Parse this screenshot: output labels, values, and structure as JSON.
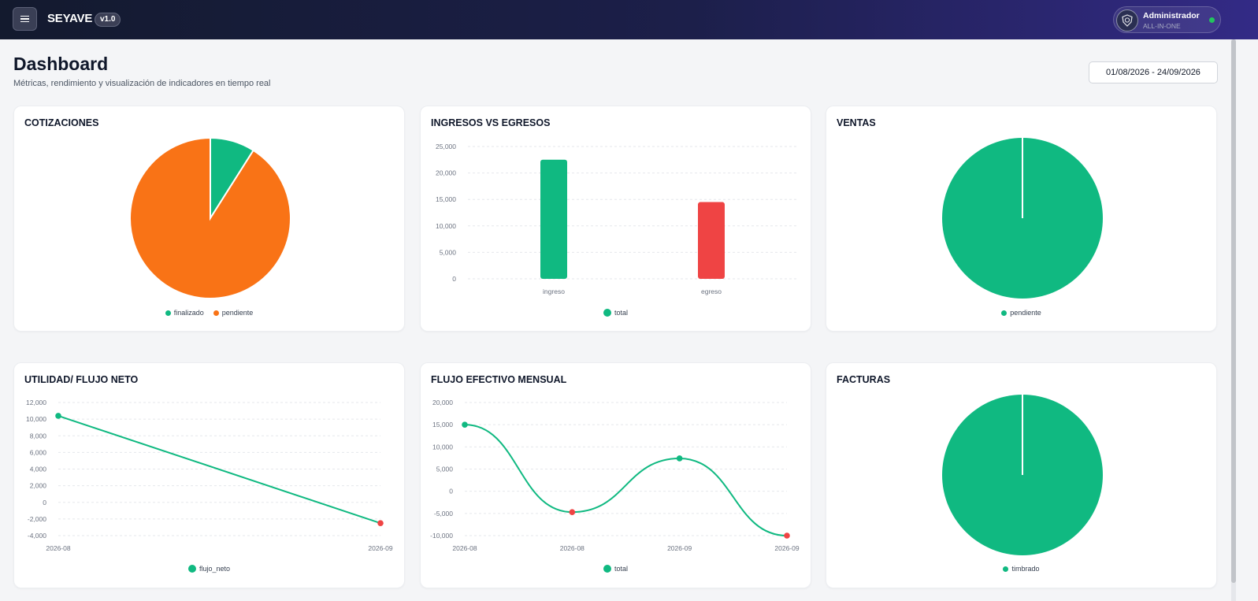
{
  "topbar": {
    "brand": "SEYAVE",
    "version": "v1.0",
    "user_name": "Administrador",
    "user_role": "ALL-IN-ONE",
    "menu_icon": "hamburger-icon",
    "avatar_icon": "shield-logo-icon"
  },
  "header": {
    "title": "Dashboard",
    "subtitle": "Métricas, rendimiento y visualización de indicadores en tiempo real",
    "date_range": "01/08/2026 - 24/09/2026"
  },
  "colors": {
    "green": "#10b981",
    "orange": "#f97316",
    "red": "#ef4444"
  },
  "cards": {
    "cotizaciones": {
      "title": "COTIZACIONES"
    },
    "ingresos": {
      "title": "INGRESOS VS EGRESOS"
    },
    "ventas": {
      "title": "VENTAS"
    },
    "utilidad": {
      "title": "UTILIDAD/ FLUJO NETO"
    },
    "flujo": {
      "title": "FLUJO EFECTIVO MENSUAL"
    },
    "facturas": {
      "title": "FACTURAS"
    }
  },
  "chart_data": [
    {
      "id": "cotizaciones",
      "type": "pie",
      "labels": [
        "finalizado",
        "pendiente"
      ],
      "values": [
        9,
        91
      ],
      "colors": [
        "#10b981",
        "#f97316"
      ],
      "legend": "bottom"
    },
    {
      "id": "ingresos",
      "type": "bar",
      "categories": [
        "ingreso",
        "egreso"
      ],
      "series": [
        {
          "name": "total",
          "values": [
            22500,
            14500
          ]
        }
      ],
      "bar_colors": [
        "#10b981",
        "#ef4444"
      ],
      "yticks": [
        "0",
        "5,000",
        "10,000",
        "15,000",
        "20,000",
        "25,000"
      ],
      "ylim": [
        0,
        25000
      ],
      "grid": true,
      "legend": "bottom"
    },
    {
      "id": "ventas",
      "type": "pie",
      "labels": [
        "pendiente"
      ],
      "values": [
        100
      ],
      "colors": [
        "#10b981"
      ],
      "legend": "bottom"
    },
    {
      "id": "utilidad",
      "type": "line",
      "x": [
        "2026-08",
        "2026-09"
      ],
      "series": [
        {
          "name": "flujo_neto",
          "values": [
            10400,
            -2500
          ]
        }
      ],
      "point_colors": [
        "#10b981",
        "#ef4444"
      ],
      "yticks": [
        "-4,000",
        "-2,000",
        "0",
        "2,000",
        "4,000",
        "6,000",
        "8,000",
        "10,000",
        "12,000"
      ],
      "ylim": [
        -4000,
        12000
      ],
      "grid": true,
      "legend": "bottom"
    },
    {
      "id": "flujo",
      "type": "line",
      "x": [
        "2026-08",
        "2026-08",
        "2026-09",
        "2026-09"
      ],
      "series": [
        {
          "name": "total",
          "values": [
            15000,
            -4700,
            7400,
            -10000
          ]
        }
      ],
      "point_colors": [
        "#10b981",
        "#ef4444",
        "#10b981",
        "#ef4444"
      ],
      "yticks": [
        "-10,000",
        "-5,000",
        "0",
        "5,000",
        "10,000",
        "15,000",
        "20,000"
      ],
      "ylim": [
        -10000,
        20000
      ],
      "grid": true,
      "legend": "bottom"
    },
    {
      "id": "facturas",
      "type": "pie",
      "labels": [
        "timbrado"
      ],
      "values": [
        100
      ],
      "colors": [
        "#10b981"
      ],
      "legend": "bottom"
    }
  ]
}
